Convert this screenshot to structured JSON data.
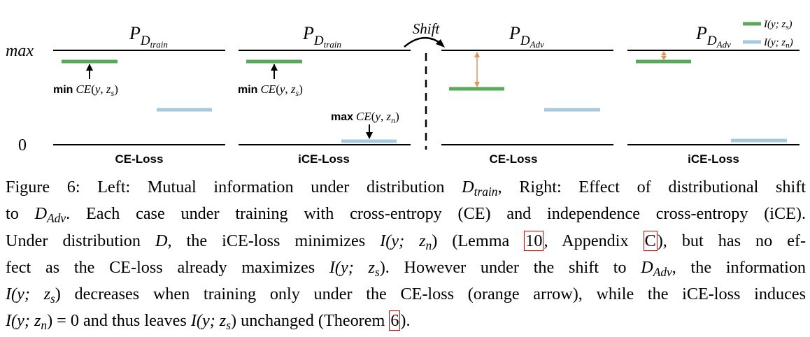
{
  "figure": {
    "y_axis_labels": {
      "max": "max",
      "zero": "0"
    },
    "shift_label": "Shift",
    "legend": [
      {
        "symbol": "I(y; z_s)",
        "color": "#5aa85a"
      },
      {
        "symbol": "I(y; z_n)",
        "color": "#a8c8de"
      }
    ],
    "panels": [
      {
        "distribution": "P_D_train",
        "loss_label": "CE-Loss",
        "I_zs_fraction": 0.88,
        "I_zn_fraction": 0.37,
        "annotation": {
          "bold": "min",
          "expr": "CE(y, z_s)"
        }
      },
      {
        "distribution": "P_D_train",
        "loss_label": "iCE-Loss",
        "I_zs_fraction": 0.88,
        "I_zn_fraction": 0.04,
        "annotation": {
          "bold": "max",
          "expr": "CE(y, z_n)"
        }
      },
      {
        "distribution": "P_D_Adv",
        "loss_label": "CE-Loss",
        "I_zs_fraction": 0.59,
        "I_zn_fraction": 0.37,
        "arrow": "orange double arrow from max to I(y; z_s)"
      },
      {
        "distribution": "P_D_Adv",
        "loss_label": "iCE-Loss",
        "I_zs_fraction": 0.88,
        "I_zn_fraction": 0.04,
        "arrow": "orange double arrow from max to I(y; z_s)"
      }
    ],
    "colors": {
      "green": "#5aa85a",
      "blue": "#a8c8de",
      "orange": "#e0955a",
      "axis": "#000000"
    }
  },
  "caption": {
    "fig_label": "Figure 6:",
    "text_1": "Left: Mutual information under distribution",
    "text_2": ", Right: Effect of distributional shift",
    "text_3": "to",
    "text_4": ". Each case under training with cross-entropy (CE) and independence cross-entropy (iCE).",
    "text_5": "Under distribution",
    "text_6": ", the iCE-loss minimizes",
    "text_7": "(Lemma",
    "ref_lemma": "10",
    "text_8": ", Appendix",
    "ref_appendix": "C",
    "text_9": "), but has no ef-",
    "text_10": "fect as the CE-loss already maximizes",
    "text_11": ". However under the shift to",
    "text_12": ", the information",
    "text_13": "decreases when training only under the CE-loss (orange arrow), while the iCE-loss induces",
    "text_14": "and thus leaves",
    "text_15": "unchanged (Theorem",
    "ref_theorem": "6",
    "text_16": ").",
    "math": {
      "D_train": "D",
      "D_train_sub": "train",
      "D_adv": "D",
      "D_adv_sub": "Adv",
      "D": "D",
      "I_zn": "I(y; z",
      "I_zs": "I(y; z",
      "sub_n": "n",
      "sub_s": "s",
      "eq_zero": "= 0"
    }
  }
}
